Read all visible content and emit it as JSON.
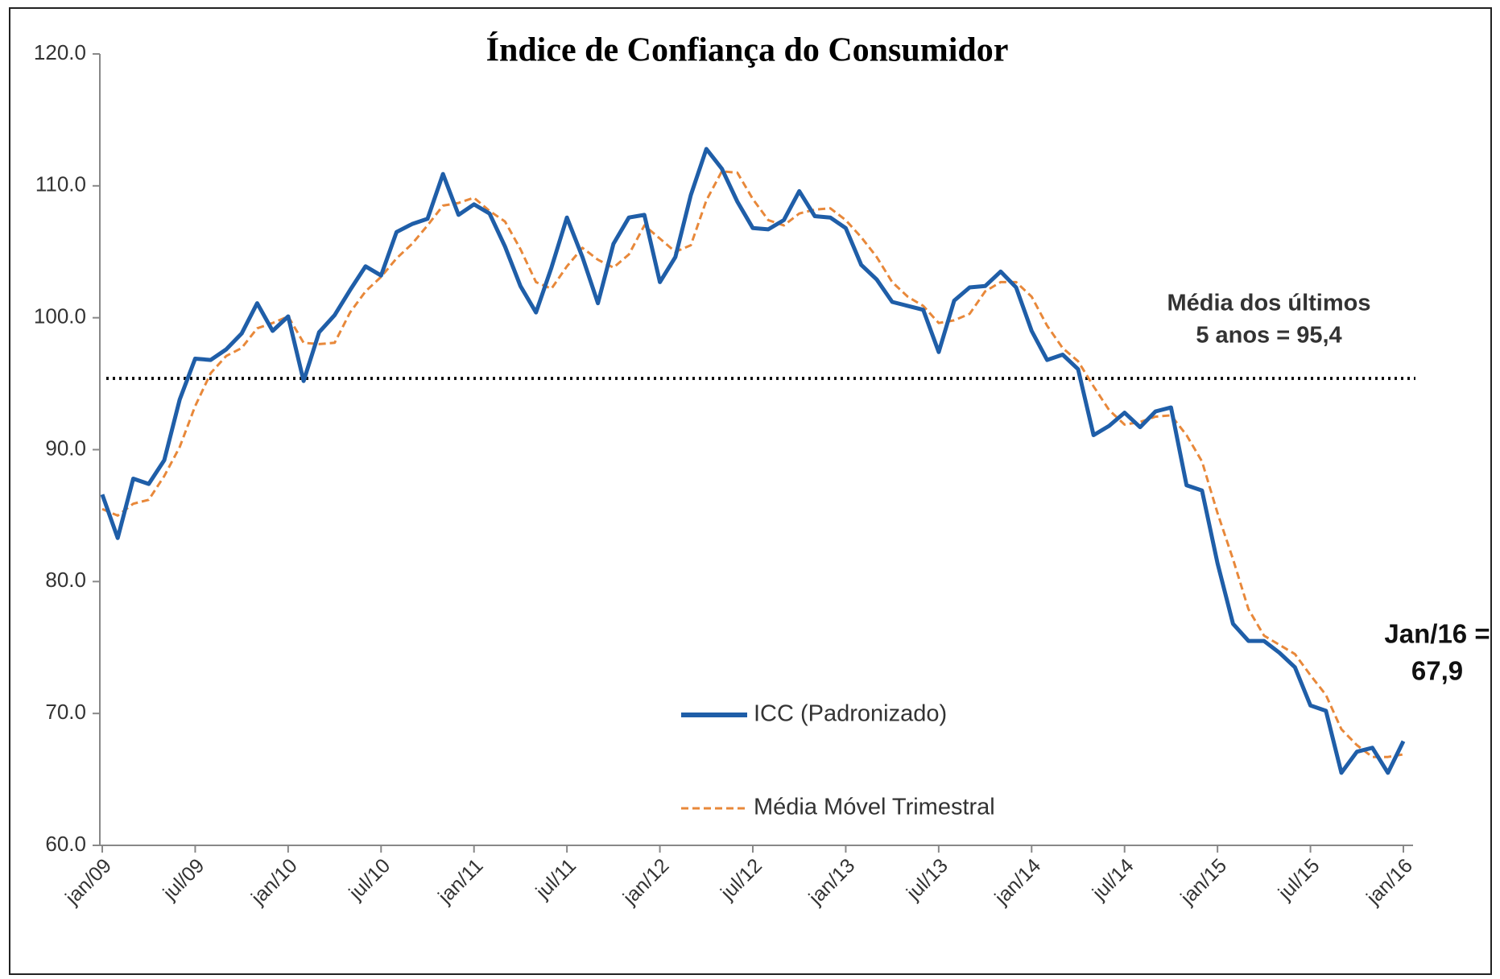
{
  "chart_data": {
    "type": "line",
    "title": "Índice de Confiança do Consumidor",
    "categories": [
      "jan/09",
      null,
      null,
      null,
      null,
      null,
      "jul/09",
      null,
      null,
      null,
      null,
      null,
      "jan/10",
      null,
      null,
      null,
      null,
      null,
      "jul/10",
      null,
      null,
      null,
      null,
      null,
      "jan/11",
      null,
      null,
      null,
      null,
      null,
      "jul/11",
      null,
      null,
      null,
      null,
      null,
      "jan/12",
      null,
      null,
      null,
      null,
      null,
      "jul/12",
      null,
      null,
      null,
      null,
      null,
      "jan/13",
      null,
      null,
      null,
      null,
      null,
      "jul/13",
      null,
      null,
      null,
      null,
      null,
      "jan/14",
      null,
      null,
      null,
      null,
      null,
      "jul/14",
      null,
      null,
      null,
      null,
      null,
      "jan/15",
      null,
      null,
      null,
      null,
      null,
      "jul/15",
      null,
      null,
      null,
      null,
      null,
      "jan/16"
    ],
    "series": [
      {
        "name": "ICC (Padronizado)",
        "color": "#1f5ea8",
        "style": "solid",
        "values": [
          86.6,
          83.3,
          87.8,
          87.4,
          89.2,
          93.8,
          96.9,
          96.8,
          97.6,
          98.8,
          101.1,
          99.0,
          100.1,
          95.2,
          98.9,
          100.2,
          102.1,
          103.9,
          103.2,
          106.5,
          107.1,
          107.5,
          110.9,
          107.8,
          108.6,
          107.9,
          105.4,
          102.4,
          100.4,
          103.8,
          107.6,
          104.6,
          101.1,
          105.6,
          107.6,
          107.8,
          102.7,
          104.6,
          109.3,
          112.8,
          111.3,
          108.8,
          106.8,
          106.7,
          107.4,
          109.6,
          107.7,
          107.6,
          106.8,
          104.0,
          102.9,
          101.2,
          100.9,
          100.6,
          97.4,
          101.3,
          102.3,
          102.4,
          103.5,
          102.3,
          99.0,
          96.8,
          97.2,
          96.1,
          91.1,
          91.8,
          92.8,
          91.7,
          92.9,
          93.2,
          87.3,
          86.9,
          81.4,
          76.8,
          75.5,
          75.5,
          74.6,
          73.5,
          70.6,
          70.2,
          65.5,
          67.1,
          67.4,
          65.5,
          67.9
        ]
      },
      {
        "name": "Média Móvel Trimestral",
        "color": "#e8883a",
        "style": "dashed",
        "values": [
          85.5,
          85.0,
          85.9,
          86.2,
          88.0,
          90.2,
          93.3,
          95.8,
          97.1,
          97.7,
          99.2,
          99.6,
          100.1,
          98.1,
          98.0,
          98.1,
          100.4,
          102.0,
          103.1,
          104.5,
          105.6,
          107.0,
          108.5,
          108.7,
          109.1,
          108.1,
          107.3,
          105.2,
          102.7,
          102.2,
          103.9,
          105.3,
          104.4,
          103.8,
          104.8,
          107.0,
          106.0,
          105.0,
          105.5,
          108.9,
          111.1,
          111.0,
          109.0,
          107.4,
          107.0,
          107.9,
          108.2,
          108.3,
          107.4,
          106.1,
          104.6,
          102.7,
          101.6,
          100.9,
          99.6,
          99.8,
          100.3,
          102.0,
          102.7,
          102.7,
          101.6,
          99.4,
          97.7,
          96.7,
          94.8,
          93.0,
          91.9,
          92.1,
          92.5,
          92.6,
          91.1,
          89.1,
          85.2,
          81.7,
          77.9,
          75.9,
          75.2,
          74.5,
          72.9,
          71.4,
          68.8,
          67.6,
          66.7,
          66.7,
          66.9
        ]
      }
    ],
    "ylim": [
      60,
      120
    ],
    "yticks": [
      {
        "value": 60,
        "label": "60.0"
      },
      {
        "value": 70,
        "label": "70.0"
      },
      {
        "value": 80,
        "label": "80.0"
      },
      {
        "value": 90,
        "label": "90.0"
      },
      {
        "value": 100,
        "label": "100.0"
      },
      {
        "value": 110,
        "label": "110.0"
      },
      {
        "value": 120,
        "label": "120.0"
      }
    ],
    "reference_line": {
      "value": 95.4,
      "label": [
        "Média dos últimos",
        "5 anos = 95,4"
      ]
    },
    "annotation": [
      "Jan/16 =",
      "67,9"
    ],
    "legend": "bottom-center",
    "grid": false
  }
}
